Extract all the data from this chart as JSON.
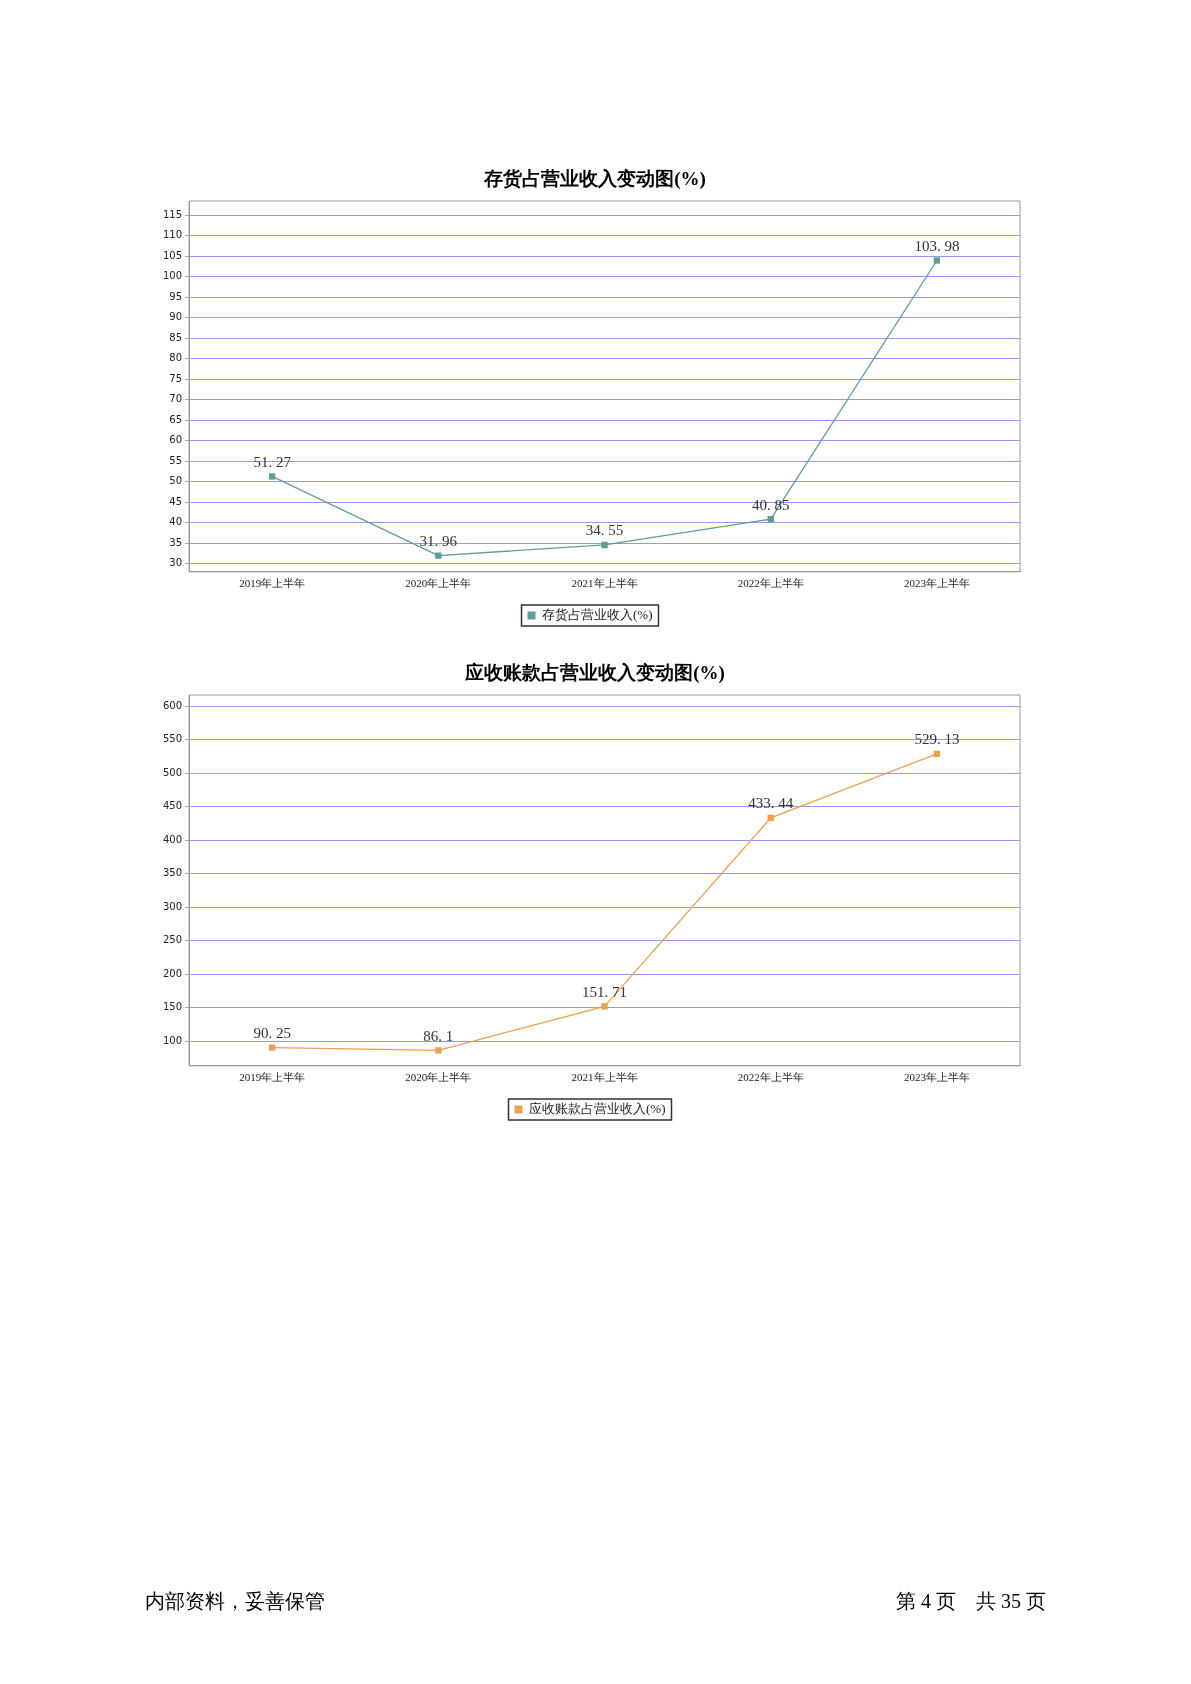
{
  "chart_data": [
    {
      "type": "line",
      "title": "存货占营业收入变动图(%)",
      "categories": [
        "2019年上半年",
        "2020年上半年",
        "2021年上半年",
        "2022年上半年",
        "2023年上半年"
      ],
      "series": [
        {
          "name": "存货占营业收入(%)",
          "color": "#5f9e98",
          "values": [
            51.27,
            31.96,
            34.55,
            40.85,
            103.98
          ]
        }
      ],
      "ylim": [
        28,
        118.5
      ],
      "yticks": [
        30,
        35,
        40,
        45,
        50,
        55,
        60,
        65,
        70,
        75,
        80,
        85,
        90,
        95,
        100,
        105,
        110,
        115
      ],
      "grid": "y",
      "legend": "bottom",
      "marker": "square",
      "line_style": "solid",
      "data_labels": true
    },
    {
      "type": "line",
      "title": "应收账款占营业收入变动图(%)",
      "categories": [
        "2019年上半年",
        "2020年上半年",
        "2021年上半年",
        "2022年上半年",
        "2023年上半年"
      ],
      "series": [
        {
          "name": "应收账款占营业收入(%)",
          "color": "#f0a04b",
          "values": [
            90.25,
            86.1,
            151.71,
            433.44,
            529.13
          ]
        }
      ],
      "ylim": [
        63,
        617
      ],
      "yticks": [
        100,
        150,
        200,
        250,
        300,
        350,
        400,
        450,
        500,
        550,
        600
      ],
      "grid": "y",
      "legend": "bottom",
      "marker": "square",
      "line_style": "solid",
      "data_labels": true,
      "annotations": [
        "内部资料，妥善保管",
        "第 4 页　共 35 页"
      ]
    }
  ]
}
